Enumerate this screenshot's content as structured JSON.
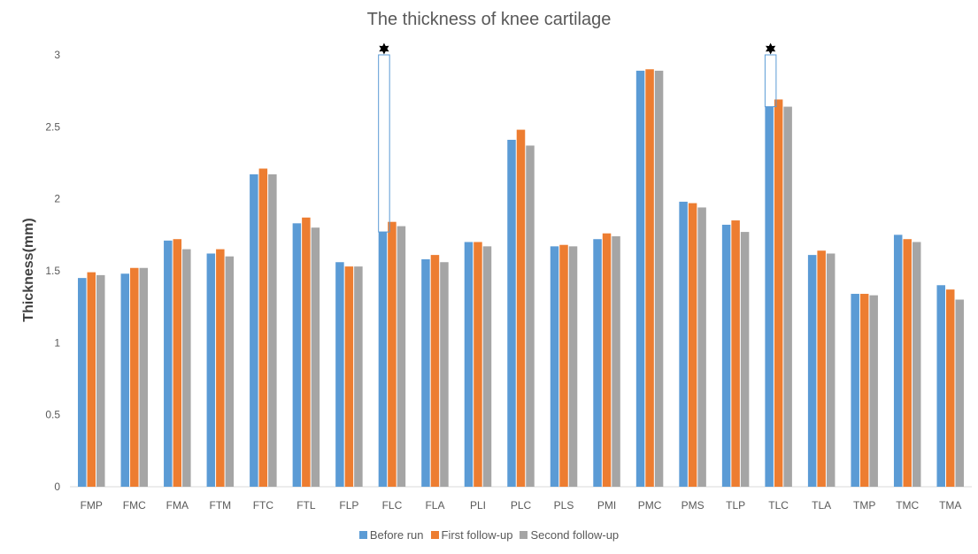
{
  "chart_data": {
    "type": "bar",
    "title": "The thickness of knee cartilage",
    "xlabel": "",
    "ylabel": "Thickness(mm)",
    "ylim": [
      0,
      3
    ],
    "yticks": [
      "0",
      "0.5",
      "1",
      "1.5",
      "2",
      "2.5",
      "3"
    ],
    "grid": false,
    "legend_position": "bottom",
    "categories": [
      "FMP",
      "FMC",
      "FMA",
      "FTM",
      "FTC",
      "FTL",
      "FLP",
      "FLC",
      "FLA",
      "PLI",
      "PLC",
      "PLS",
      "PMI",
      "PMC",
      "PMS",
      "TLP",
      "TLC",
      "TLA",
      "TMP",
      "TMC",
      "TMA"
    ],
    "series": [
      {
        "name": "Before run",
        "color": "#5b9bd5",
        "values": [
          1.45,
          1.48,
          1.71,
          1.62,
          2.17,
          1.83,
          1.56,
          1.77,
          1.58,
          1.7,
          2.41,
          1.67,
          1.72,
          2.89,
          1.98,
          1.82,
          2.64,
          1.61,
          1.34,
          1.75,
          1.4
        ]
      },
      {
        "name": "First follow-up",
        "color": "#ed7d31",
        "values": [
          1.49,
          1.52,
          1.72,
          1.65,
          2.21,
          1.87,
          1.53,
          1.84,
          1.61,
          1.7,
          2.48,
          1.68,
          1.76,
          2.9,
          1.97,
          1.85,
          2.69,
          1.64,
          1.34,
          1.72,
          1.37
        ]
      },
      {
        "name": "Second follow-up",
        "color": "#a5a5a5",
        "values": [
          1.47,
          1.52,
          1.65,
          1.6,
          2.17,
          1.8,
          1.53,
          1.81,
          1.56,
          1.67,
          2.37,
          1.67,
          1.74,
          2.89,
          1.94,
          1.77,
          2.64,
          1.62,
          1.33,
          1.7,
          1.3
        ]
      }
    ],
    "annotations": [
      {
        "category": "FLC",
        "marker": "star",
        "box_top": 3.0
      },
      {
        "category": "TLC",
        "marker": "star",
        "box_top": 3.0
      }
    ]
  }
}
